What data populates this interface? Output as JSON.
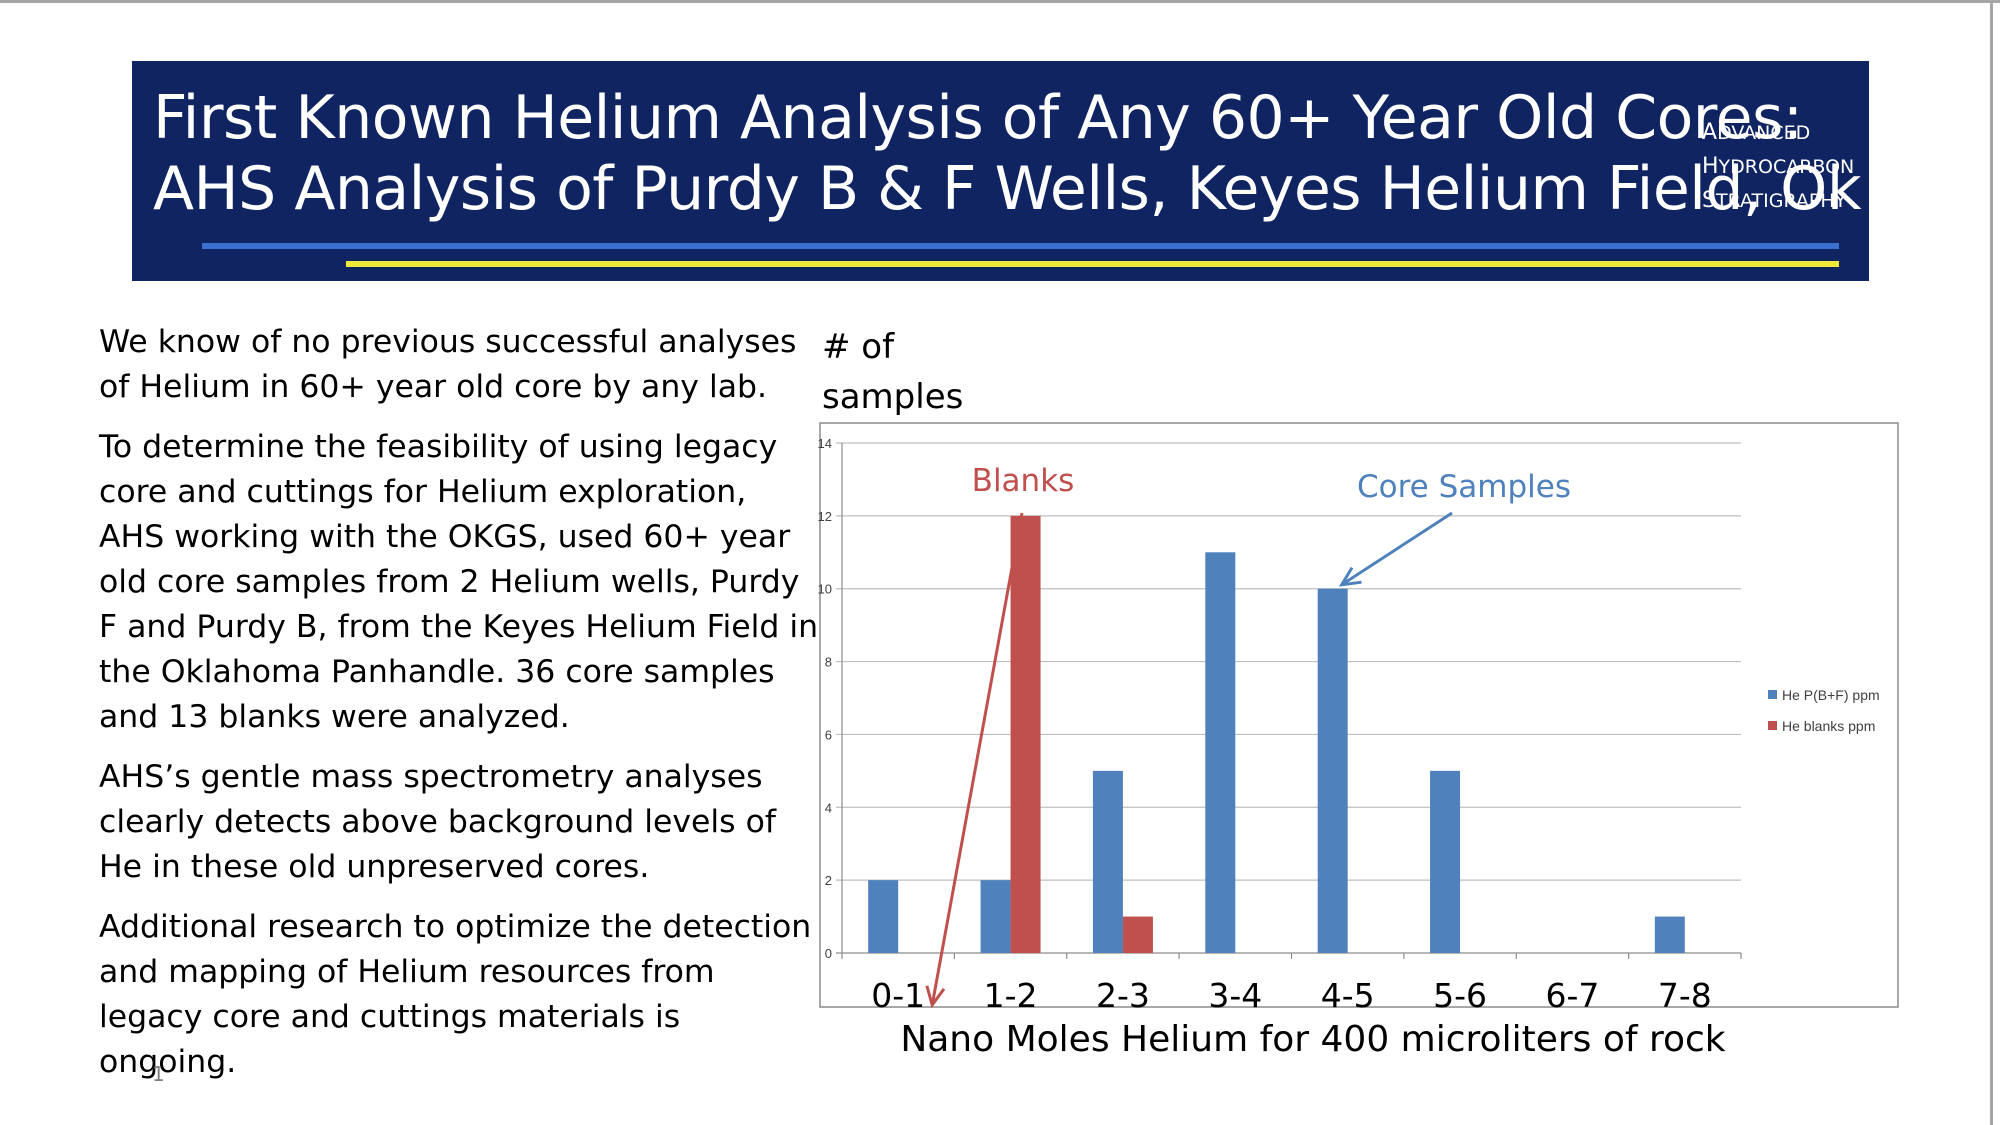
{
  "banner": {
    "title_line1": "First Known Helium Analysis of Any 60+ Year Old Cores:",
    "title_line2": "AHS Analysis of Purdy B & F Wells, Keyes Helium Field, Ok",
    "logo": [
      {
        "cap": "A",
        "rest": "DVANCED"
      },
      {
        "cap": "H",
        "rest": "YDROCARBON"
      },
      {
        "cap": "S",
        "rest": "TRATIGRAPHY"
      }
    ],
    "colors": {
      "background": "#0f2461",
      "line_blue": "#3b6fd0",
      "line_yellow": "#f2e83a"
    }
  },
  "body": {
    "paragraphs": [
      "We know of no previous successful analyses of Helium in 60+ year old core by any lab.",
      "To determine the feasibility of using legacy core and cuttings for Helium exploration, AHS working with the OKGS, used 60+ year old core samples from 2 Helium wells, Purdy F and Purdy B, from the Keyes Helium Field in the Oklahoma Panhandle. 36 core samples and 13 blanks were analyzed.",
      "AHS’s gentle mass spectrometry analyses clearly detects above background levels of He in these old unpreserved cores.",
      "Additional research to optimize the detection and mapping of Helium resources from legacy core and cuttings materials is ongoing."
    ]
  },
  "page_number": "1",
  "chart_data": {
    "type": "bar",
    "title": "",
    "ylabel_line1": "# of",
    "ylabel_line2": "samples",
    "xlabel": "Nano Moles Helium for 400 microliters of rock",
    "categories": [
      "0-1",
      "1-2",
      "2-3",
      "3-4",
      "4-5",
      "5-6",
      "6-7",
      "7-8"
    ],
    "ylim": [
      0,
      14
    ],
    "yticks": [
      0,
      2,
      4,
      6,
      8,
      10,
      12,
      14
    ],
    "grid": true,
    "legend_position": "right",
    "series": [
      {
        "name": "He P(B+F) ppm",
        "color": "#4f81bd",
        "values": [
          2,
          2,
          5,
          11,
          10,
          5,
          0,
          1
        ]
      },
      {
        "name": "He blanks ppm",
        "color": "#c0504d",
        "values": [
          0,
          12,
          1,
          0,
          0,
          0,
          0,
          0
        ]
      }
    ],
    "annotations": [
      {
        "text": "Blanks",
        "color": "#c0504d"
      },
      {
        "text": "Core Samples",
        "color": "#4f81bd"
      }
    ]
  }
}
